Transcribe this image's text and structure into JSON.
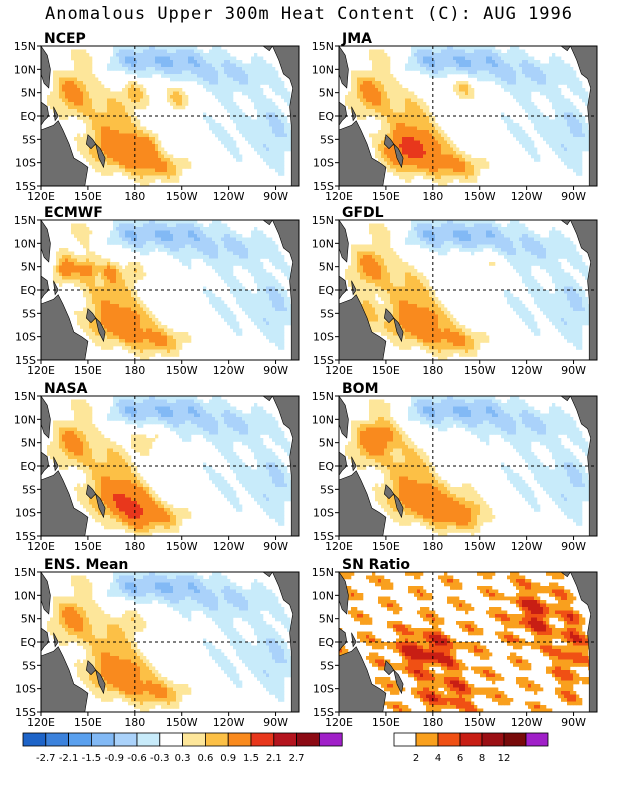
{
  "title": "Anomalous Upper 300m Heat Content (C): AUG 1996",
  "chart_data": {
    "type": "heatmap",
    "title": "Anomalous Upper 300m Heat Content (C): AUG 1996",
    "x_ticks": [
      "120E",
      "150E",
      "180",
      "150W",
      "120W",
      "90W"
    ],
    "y_ticks": [
      "15N",
      "10N",
      "5N",
      "EQ",
      "5S",
      "10S",
      "15S"
    ],
    "panels": [
      {
        "name": "NCEP",
        "field": "ncep"
      },
      {
        "name": "JMA",
        "field": "jma"
      },
      {
        "name": "ECMWF",
        "field": "ecmwf"
      },
      {
        "name": "GFDL",
        "field": "gfdl"
      },
      {
        "name": "NASA",
        "field": "nasa"
      },
      {
        "name": "BOM",
        "field": "bom"
      },
      {
        "name": "ENS. Mean",
        "field": "ens"
      },
      {
        "name": "SN Ratio",
        "field": "sn"
      }
    ],
    "colorbar_anomaly": {
      "labels": [
        "-2.7",
        "-2.1",
        "-1.5",
        "-0.9",
        "-0.6",
        "-0.3",
        "0.3",
        "0.6",
        "0.9",
        "1.5",
        "2.1",
        "2.7"
      ],
      "colors": [
        "#1e64c8",
        "#3c82dc",
        "#5aa0ee",
        "#82b9f5",
        "#aad2fa",
        "#c8ebfa",
        "#ffffff",
        "#fde69a",
        "#fcc046",
        "#f98a1e",
        "#e8371c",
        "#b4141e",
        "#8c0a14",
        "#a020c8"
      ]
    },
    "colorbar_sn": {
      "labels": [
        "2",
        "4",
        "6",
        "8",
        "12"
      ],
      "colors": [
        "#ffffff",
        "#f9a01e",
        "#f05014",
        "#c81e14",
        "#9b0f14",
        "#780a0a",
        "#a020c8"
      ]
    }
  }
}
